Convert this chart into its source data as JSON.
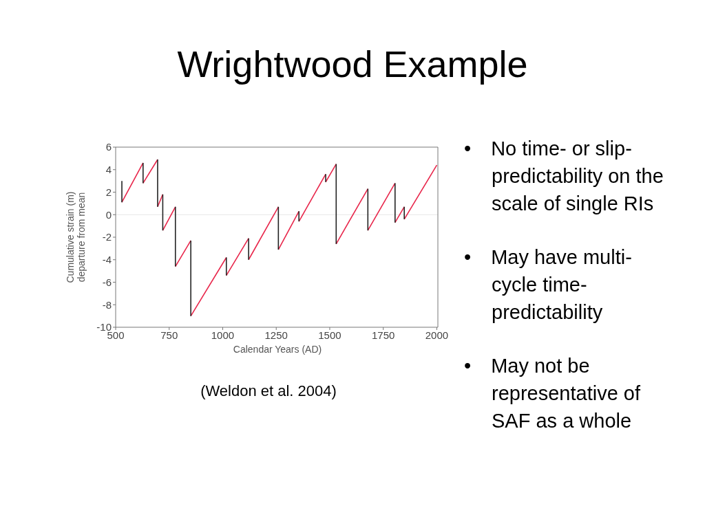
{
  "chart_data": {
    "type": "line",
    "title": "Wrightwood Example",
    "xlabel": "Calendar Years (AD)",
    "ylabel": "Cumulative strain (m)\ndeparture from mean",
    "xlim": [
      500,
      2005
    ],
    "xticks": [
      500,
      750,
      1000,
      1250,
      1500,
      1750,
      2000
    ],
    "ylim": [
      -10,
      6
    ],
    "yticks": [
      -10,
      -8,
      -6,
      -4,
      -2,
      0,
      2,
      4,
      6
    ],
    "grid": false,
    "marker": "none",
    "line_style": "solid",
    "ref_lines": [
      {
        "axis": "y",
        "value": 0,
        "color": "#e6e6e6"
      }
    ],
    "series": [
      {
        "color": "#e8254a",
        "x": [
          529,
          628
        ],
        "values": [
          1.1,
          4.6
        ]
      },
      {
        "color": "#e8254a",
        "x": [
          628,
          696
        ],
        "values": [
          2.8,
          4.9
        ]
      },
      {
        "color": "#e8254a",
        "x": [
          696,
          720
        ],
        "values": [
          0.7,
          1.8
        ]
      },
      {
        "color": "#e8254a",
        "x": [
          720,
          779
        ],
        "values": [
          -1.4,
          0.7
        ]
      },
      {
        "color": "#e8254a",
        "x": [
          779,
          851
        ],
        "values": [
          -4.6,
          -2.3
        ]
      },
      {
        "color": "#e8254a",
        "x": [
          851,
          1017
        ],
        "values": [
          -9.0,
          -3.8
        ]
      },
      {
        "color": "#e8254a",
        "x": [
          1017,
          1121
        ],
        "values": [
          -5.4,
          -2.1
        ]
      },
      {
        "color": "#e8254a",
        "x": [
          1121,
          1260
        ],
        "values": [
          -4.0,
          0.7
        ]
      },
      {
        "color": "#e8254a",
        "x": [
          1260,
          1356
        ],
        "values": [
          -3.1,
          0.3
        ]
      },
      {
        "color": "#e8254a",
        "x": [
          1356,
          1481
        ],
        "values": [
          -0.6,
          3.6
        ]
      },
      {
        "color": "#e8254a",
        "x": [
          1481,
          1530
        ],
        "values": [
          2.9,
          4.5
        ]
      },
      {
        "color": "#e8254a",
        "x": [
          1530,
          1678
        ],
        "values": [
          -2.6,
          2.3
        ]
      },
      {
        "color": "#e8254a",
        "x": [
          1678,
          1805
        ],
        "values": [
          -1.4,
          2.8
        ]
      },
      {
        "color": "#e8254a",
        "x": [
          1805,
          1848
        ],
        "values": [
          -0.7,
          0.7
        ]
      },
      {
        "color": "#e8254a",
        "x": [
          1848,
          2000
        ],
        "values": [
          -0.4,
          4.4
        ]
      },
      {
        "color": "#222222",
        "x": [
          529,
          529
        ],
        "values": [
          3.0,
          1.1
        ]
      },
      {
        "color": "#222222",
        "x": [
          628,
          628
        ],
        "values": [
          4.6,
          2.8
        ]
      },
      {
        "color": "#222222",
        "x": [
          696,
          696
        ],
        "values": [
          4.9,
          0.7
        ]
      },
      {
        "color": "#222222",
        "x": [
          720,
          720
        ],
        "values": [
          1.8,
          -1.4
        ]
      },
      {
        "color": "#222222",
        "x": [
          779,
          779
        ],
        "values": [
          0.7,
          -4.6
        ]
      },
      {
        "color": "#222222",
        "x": [
          851,
          851
        ],
        "values": [
          -2.3,
          -9.0
        ]
      },
      {
        "color": "#222222",
        "x": [
          1017,
          1017
        ],
        "values": [
          -3.8,
          -5.4
        ]
      },
      {
        "color": "#222222",
        "x": [
          1121,
          1121
        ],
        "values": [
          -2.1,
          -4.0
        ]
      },
      {
        "color": "#222222",
        "x": [
          1260,
          1260
        ],
        "values": [
          0.7,
          -3.1
        ]
      },
      {
        "color": "#222222",
        "x": [
          1356,
          1356
        ],
        "values": [
          0.3,
          -0.6
        ]
      },
      {
        "color": "#222222",
        "x": [
          1481,
          1481
        ],
        "values": [
          3.6,
          2.9
        ]
      },
      {
        "color": "#222222",
        "x": [
          1530,
          1530
        ],
        "values": [
          4.5,
          -2.6
        ]
      },
      {
        "color": "#222222",
        "x": [
          1678,
          1678
        ],
        "values": [
          2.3,
          -1.4
        ]
      },
      {
        "color": "#222222",
        "x": [
          1805,
          1805
        ],
        "values": [
          2.8,
          -0.7
        ]
      },
      {
        "color": "#222222",
        "x": [
          1848,
          1848
        ],
        "values": [
          0.7,
          -0.4
        ]
      }
    ],
    "annotations": [
      "(Weldon et al. 2004)",
      "• No time- or slip-predictability on the scale of single RIs",
      "• May have multi-cycle time-predictability",
      "• May not be representative of SAF as a whole"
    ]
  }
}
